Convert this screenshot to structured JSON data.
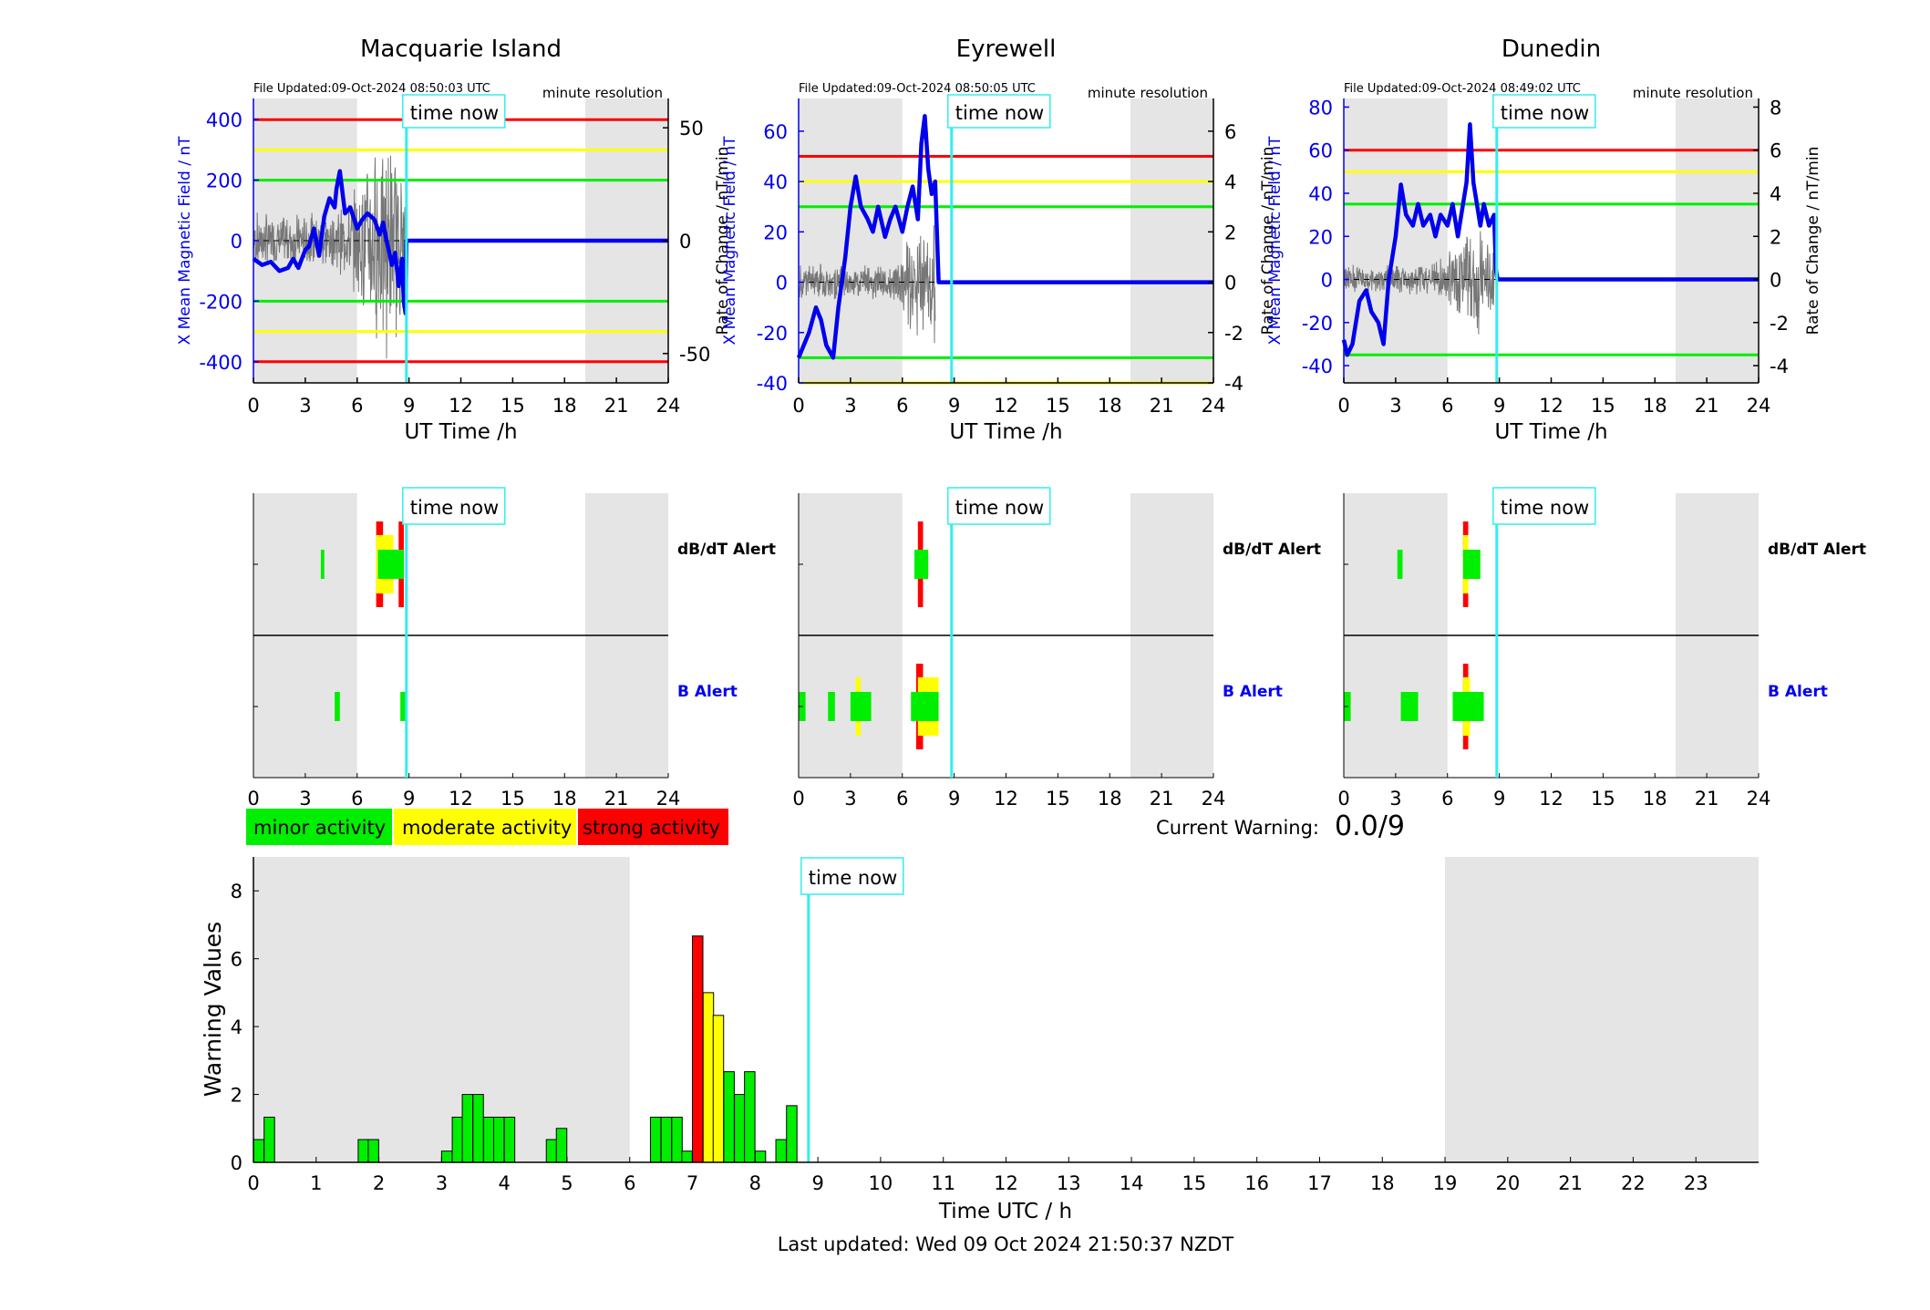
{
  "stations": [
    {
      "title": "Macquarie Island",
      "file_updated": "File Updated:09-Oct-2024 08:50:03 UTC",
      "resolution": "minute resolution",
      "left_ticks": [
        "400",
        "200",
        "0",
        "-200",
        "-400"
      ],
      "right_ticks": [
        "50",
        "0",
        "-50"
      ]
    },
    {
      "title": "Eyrewell",
      "file_updated": "File Updated:09-Oct-2024 08:50:05 UTC",
      "resolution": "minute resolution",
      "left_ticks": [
        "60",
        "40",
        "20",
        "0",
        "-20",
        "-40"
      ],
      "right_ticks": [
        "6",
        "4",
        "2",
        "0",
        "-2",
        "-4"
      ]
    },
    {
      "title": "Dunedin",
      "file_updated": "File Updated:09-Oct-2024 08:49:02 UTC",
      "resolution": "minute resolution",
      "left_ticks": [
        "80",
        "60",
        "40",
        "20",
        "0",
        "-20",
        "-40"
      ],
      "right_ticks": [
        "8",
        "6",
        "4",
        "2",
        "0",
        "-2",
        "-4"
      ]
    }
  ],
  "labels": {
    "ylabel_left": "X Mean Magnetic Field / nT",
    "ylabel_right": "Rate of Change / nT/min",
    "xlabel": "UT Time /h",
    "time_now": "time now",
    "dbdt_alert": "dB/dT Alert",
    "b_alert": "B Alert",
    "legend_minor": "minor activity",
    "legend_moderate": "moderate activity",
    "legend_strong": "strong activity",
    "current_warning_label": "Current Warning:",
    "current_warning_value": "0.0/9",
    "warning_ylabel": "Warning Values",
    "warning_xlabel": "Time UTC / h",
    "last_updated": "Last updated: Wed 09 Oct 2024 21:50:37 NZDT"
  },
  "hour_ticks": [
    "0",
    "3",
    "6",
    "9",
    "12",
    "15",
    "18",
    "21",
    "24"
  ],
  "warning_hour_ticks": [
    "0",
    "1",
    "2",
    "3",
    "4",
    "5",
    "6",
    "7",
    "8",
    "9",
    "10",
    "11",
    "12",
    "13",
    "14",
    "15",
    "16",
    "17",
    "18",
    "19",
    "20",
    "21",
    "22",
    "23"
  ],
  "warning_y_ticks": [
    "0",
    "2",
    "4",
    "6",
    "8"
  ],
  "colors": {
    "minor": "#00ee00",
    "moderate": "#ffff00",
    "strong": "#ff0000",
    "field_line": "#0000ee",
    "time_now": "#33eeee",
    "night": "#e5e5e5"
  },
  "chart_data": [
    {
      "type": "line",
      "title": "Macquarie Island",
      "xlabel": "UT Time /h",
      "ylabel": "X Mean Magnetic Field / nT",
      "ylabel_right": "Rate of Change / nT/min",
      "xlim": [
        0,
        24
      ],
      "ylim": [
        -470,
        470
      ],
      "ylim_right": [
        -63,
        63
      ],
      "night_shading_h": [
        [
          0,
          6
        ],
        [
          19.2,
          24
        ]
      ],
      "time_now_h": 8.85,
      "thresholds": [
        {
          "color": "red",
          "values": [
            400,
            -400
          ]
        },
        {
          "color": "yellow",
          "values": [
            300,
            -300
          ]
        },
        {
          "color": "green",
          "values": [
            200,
            -200
          ]
        }
      ],
      "series": [
        {
          "name": "X Mean Magnetic Field",
          "x": [
            0,
            0.5,
            1,
            1.5,
            2,
            2.3,
            2.6,
            3,
            3.2,
            3.5,
            3.8,
            4.1,
            4.4,
            4.7,
            4.8,
            5.0,
            5.3,
            5.6,
            6.0,
            6.3,
            6.6,
            7.0,
            7.3,
            7.5,
            7.7,
            7.9,
            8.0,
            8.2,
            8.4,
            8.6,
            8.7,
            8.8,
            8.85,
            24
          ],
          "y": [
            -60,
            -80,
            -70,
            -100,
            -90,
            -60,
            -90,
            -30,
            -20,
            40,
            -50,
            80,
            140,
            110,
            170,
            230,
            90,
            110,
            40,
            70,
            90,
            70,
            20,
            60,
            0,
            -50,
            -80,
            -40,
            -150,
            -60,
            -200,
            -240,
            0,
            0
          ]
        }
      ],
      "rate_of_change": {
        "x_range": [
          0,
          8.8
        ],
        "approx_amplitude": 55
      }
    },
    {
      "type": "line",
      "title": "Eyrewell",
      "xlabel": "UT Time /h",
      "ylabel": "X Mean Magnetic Field / nT",
      "ylabel_right": "Rate of Change / nT/min",
      "xlim": [
        0,
        24
      ],
      "ylim": [
        -40,
        73
      ],
      "ylim_right": [
        -4,
        7.3
      ],
      "night_shading_h": [
        [
          0,
          6
        ],
        [
          19.2,
          24
        ]
      ],
      "time_now_h": 8.85,
      "thresholds": [
        {
          "color": "red",
          "values": [
            50
          ]
        },
        {
          "color": "yellow",
          "values": [
            40,
            -40
          ]
        },
        {
          "color": "green",
          "values": [
            30,
            -30
          ]
        }
      ],
      "series": [
        {
          "name": "X Mean Magnetic Field",
          "x": [
            0,
            0.3,
            0.6,
            1.0,
            1.3,
            1.6,
            2.0,
            2.3,
            2.7,
            3.0,
            3.3,
            3.6,
            4.0,
            4.3,
            4.6,
            5.0,
            5.3,
            5.6,
            6.0,
            6.3,
            6.6,
            6.9,
            7.1,
            7.3,
            7.5,
            7.7,
            7.9,
            8.1,
            8.4,
            24
          ],
          "y": [
            -30,
            -25,
            -20,
            -10,
            -15,
            -25,
            -30,
            -10,
            10,
            30,
            42,
            30,
            25,
            20,
            30,
            18,
            25,
            30,
            20,
            30,
            38,
            25,
            55,
            66,
            45,
            35,
            40,
            0,
            0,
            0
          ]
        }
      ],
      "rate_of_change": {
        "x_range": [
          0,
          7.9
        ],
        "approx_amplitude": 3
      }
    },
    {
      "type": "line",
      "title": "Dunedin",
      "xlabel": "UT Time /h",
      "ylabel": "X Mean Magnetic Field / nT",
      "ylabel_right": "Rate of Change / nT/min",
      "xlim": [
        0,
        24
      ],
      "ylim": [
        -48,
        84
      ],
      "ylim_right": [
        -4.8,
        8.4
      ],
      "night_shading_h": [
        [
          0,
          6
        ],
        [
          19.2,
          24
        ]
      ],
      "time_now_h": 8.85,
      "thresholds": [
        {
          "color": "red",
          "values": [
            60
          ]
        },
        {
          "color": "yellow",
          "values": [
            50
          ]
        },
        {
          "color": "green",
          "values": [
            35,
            -35
          ]
        }
      ],
      "series": [
        {
          "name": "X Mean Magnetic Field",
          "x": [
            0,
            0.2,
            0.5,
            0.9,
            1.3,
            1.6,
            2.0,
            2.3,
            2.6,
            3.0,
            3.3,
            3.6,
            4.0,
            4.3,
            4.6,
            5.0,
            5.3,
            5.6,
            6.0,
            6.3,
            6.6,
            6.9,
            7.1,
            7.3,
            7.5,
            7.7,
            7.9,
            8.1,
            8.4,
            8.7,
            8.8,
            8.9,
            24
          ],
          "y": [
            -28,
            -35,
            -30,
            -10,
            -5,
            -15,
            -20,
            -30,
            0,
            20,
            44,
            30,
            25,
            35,
            25,
            30,
            20,
            30,
            25,
            35,
            20,
            35,
            45,
            72,
            45,
            35,
            25,
            35,
            25,
            30,
            5,
            0,
            0
          ]
        }
      ],
      "rate_of_change": {
        "x_range": [
          0,
          8.8
        ],
        "approx_amplitude": 3
      }
    },
    {
      "type": "bar",
      "title": "",
      "xlabel": "Time UTC / h",
      "ylabel": "Warning Values",
      "xlim": [
        0,
        24
      ],
      "ylim": [
        0,
        9
      ],
      "bar_width_h": 0.1667,
      "night_shading_h": [
        [
          0,
          6
        ],
        [
          19,
          24
        ]
      ],
      "time_now_h": 8.85,
      "bars": [
        {
          "x": 0.0,
          "value": 0.67,
          "level": "minor"
        },
        {
          "x": 0.17,
          "value": 1.33,
          "level": "minor"
        },
        {
          "x": 1.67,
          "value": 0.67,
          "level": "minor"
        },
        {
          "x": 1.83,
          "value": 0.67,
          "level": "minor"
        },
        {
          "x": 3.0,
          "value": 0.33,
          "level": "minor"
        },
        {
          "x": 3.17,
          "value": 1.33,
          "level": "minor"
        },
        {
          "x": 3.33,
          "value": 2.0,
          "level": "minor"
        },
        {
          "x": 3.5,
          "value": 2.0,
          "level": "minor"
        },
        {
          "x": 3.67,
          "value": 1.33,
          "level": "minor"
        },
        {
          "x": 3.83,
          "value": 1.33,
          "level": "minor"
        },
        {
          "x": 4.0,
          "value": 1.33,
          "level": "minor"
        },
        {
          "x": 4.67,
          "value": 0.67,
          "level": "minor"
        },
        {
          "x": 4.83,
          "value": 1.0,
          "level": "minor"
        },
        {
          "x": 6.33,
          "value": 1.33,
          "level": "minor"
        },
        {
          "x": 6.5,
          "value": 1.33,
          "level": "minor"
        },
        {
          "x": 6.67,
          "value": 1.33,
          "level": "minor"
        },
        {
          "x": 6.83,
          "value": 0.33,
          "level": "minor"
        },
        {
          "x": 7.0,
          "value": 6.67,
          "level": "strong"
        },
        {
          "x": 7.17,
          "value": 5.0,
          "level": "moderate"
        },
        {
          "x": 7.33,
          "value": 4.33,
          "level": "moderate"
        },
        {
          "x": 7.5,
          "value": 2.67,
          "level": "minor"
        },
        {
          "x": 7.67,
          "value": 2.0,
          "level": "minor"
        },
        {
          "x": 7.83,
          "value": 2.67,
          "level": "minor"
        },
        {
          "x": 8.0,
          "value": 0.33,
          "level": "minor"
        },
        {
          "x": 8.33,
          "value": 0.67,
          "level": "minor"
        },
        {
          "x": 8.5,
          "value": 1.67,
          "level": "minor"
        }
      ]
    }
  ],
  "alerts": [
    {
      "dbdt": [
        {
          "h": [
            3.9,
            4.1
          ],
          "level": "minor"
        },
        {
          "h": [
            7.1,
            7.5
          ],
          "level": "strong"
        },
        {
          "h": [
            7.1,
            8.1
          ],
          "level": "moderate"
        },
        {
          "h": [
            8.4,
            8.7
          ],
          "level": "strong"
        },
        {
          "h": [
            7.2,
            8.7
          ],
          "level": "minor"
        }
      ],
      "b": [
        {
          "h": [
            4.7,
            5.0
          ],
          "level": "minor"
        },
        {
          "h": [
            8.5,
            8.8
          ],
          "level": "minor"
        }
      ]
    },
    {
      "dbdt": [
        {
          "h": [
            6.9,
            7.2
          ],
          "level": "strong"
        },
        {
          "h": [
            6.7,
            7.5
          ],
          "level": "minor"
        }
      ],
      "b": [
        {
          "h": [
            0.0,
            0.4
          ],
          "level": "minor"
        },
        {
          "h": [
            1.7,
            2.1
          ],
          "level": "minor"
        },
        {
          "h": [
            3.3,
            3.6
          ],
          "level": "moderate"
        },
        {
          "h": [
            3.0,
            4.2
          ],
          "level": "minor"
        },
        {
          "h": [
            6.8,
            7.2
          ],
          "level": "strong"
        },
        {
          "h": [
            6.9,
            8.1
          ],
          "level": "moderate"
        },
        {
          "h": [
            6.5,
            8.1
          ],
          "level": "minor"
        }
      ]
    },
    {
      "dbdt": [
        {
          "h": [
            3.1,
            3.4
          ],
          "level": "minor"
        },
        {
          "h": [
            6.9,
            7.2
          ],
          "level": "strong"
        },
        {
          "h": [
            6.9,
            7.2
          ],
          "level": "moderate"
        },
        {
          "h": [
            6.9,
            7.9
          ],
          "level": "minor"
        }
      ],
      "b": [
        {
          "h": [
            0.0,
            0.4
          ],
          "level": "minor"
        },
        {
          "h": [
            3.3,
            4.3
          ],
          "level": "minor"
        },
        {
          "h": [
            6.9,
            7.2
          ],
          "level": "strong"
        },
        {
          "h": [
            6.9,
            7.3
          ],
          "level": "moderate"
        },
        {
          "h": [
            6.3,
            8.1
          ],
          "level": "minor"
        }
      ]
    }
  ]
}
